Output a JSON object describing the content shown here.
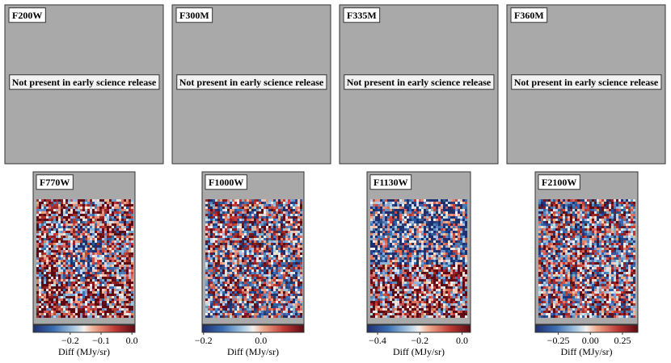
{
  "chart_data": [
    {
      "type": "image",
      "title": "F200W",
      "annotation": "Not present in early science release"
    },
    {
      "type": "image",
      "title": "F300M",
      "annotation": "Not present in early science release"
    },
    {
      "type": "image",
      "title": "F335M",
      "annotation": "Not present in early science release"
    },
    {
      "type": "image",
      "title": "F360M",
      "annotation": "Not present in early science release"
    },
    {
      "type": "heatmap",
      "title": "F770W",
      "colorbar_label": "Diff (MJy/sr)",
      "clim": [
        -0.32,
        0.01
      ],
      "cticks": [
        {
          "value": -0.2,
          "label": "−0.2"
        },
        {
          "value": -0.1,
          "label": "−0.1"
        },
        {
          "value": 0,
          "label": "0.0"
        }
      ]
    },
    {
      "type": "heatmap",
      "title": "F1000W",
      "colorbar_label": "Diff (MJy/sr)",
      "clim": [
        -0.205,
        0.15
      ],
      "cticks": [
        {
          "value": -0.2,
          "label": "−0.2"
        },
        {
          "value": 0,
          "label": "0.0"
        }
      ]
    },
    {
      "type": "heatmap",
      "title": "F1130W",
      "colorbar_label": "Diff (MJy/sr)",
      "clim": [
        -0.45,
        0.04
      ],
      "cticks": [
        {
          "value": -0.4,
          "label": "−0.4"
        },
        {
          "value": -0.2,
          "label": "−0.2"
        },
        {
          "value": 0,
          "label": "0.0"
        }
      ]
    },
    {
      "type": "heatmap",
      "title": "F2100W",
      "colorbar_label": "Diff (MJy/sr)",
      "clim": [
        -0.43,
        0.37
      ],
      "cticks": [
        {
          "value": -0.25,
          "label": "−0.25"
        },
        {
          "value": 0,
          "label": "0.00"
        },
        {
          "value": 0.25,
          "label": "0.25"
        }
      ]
    }
  ]
}
